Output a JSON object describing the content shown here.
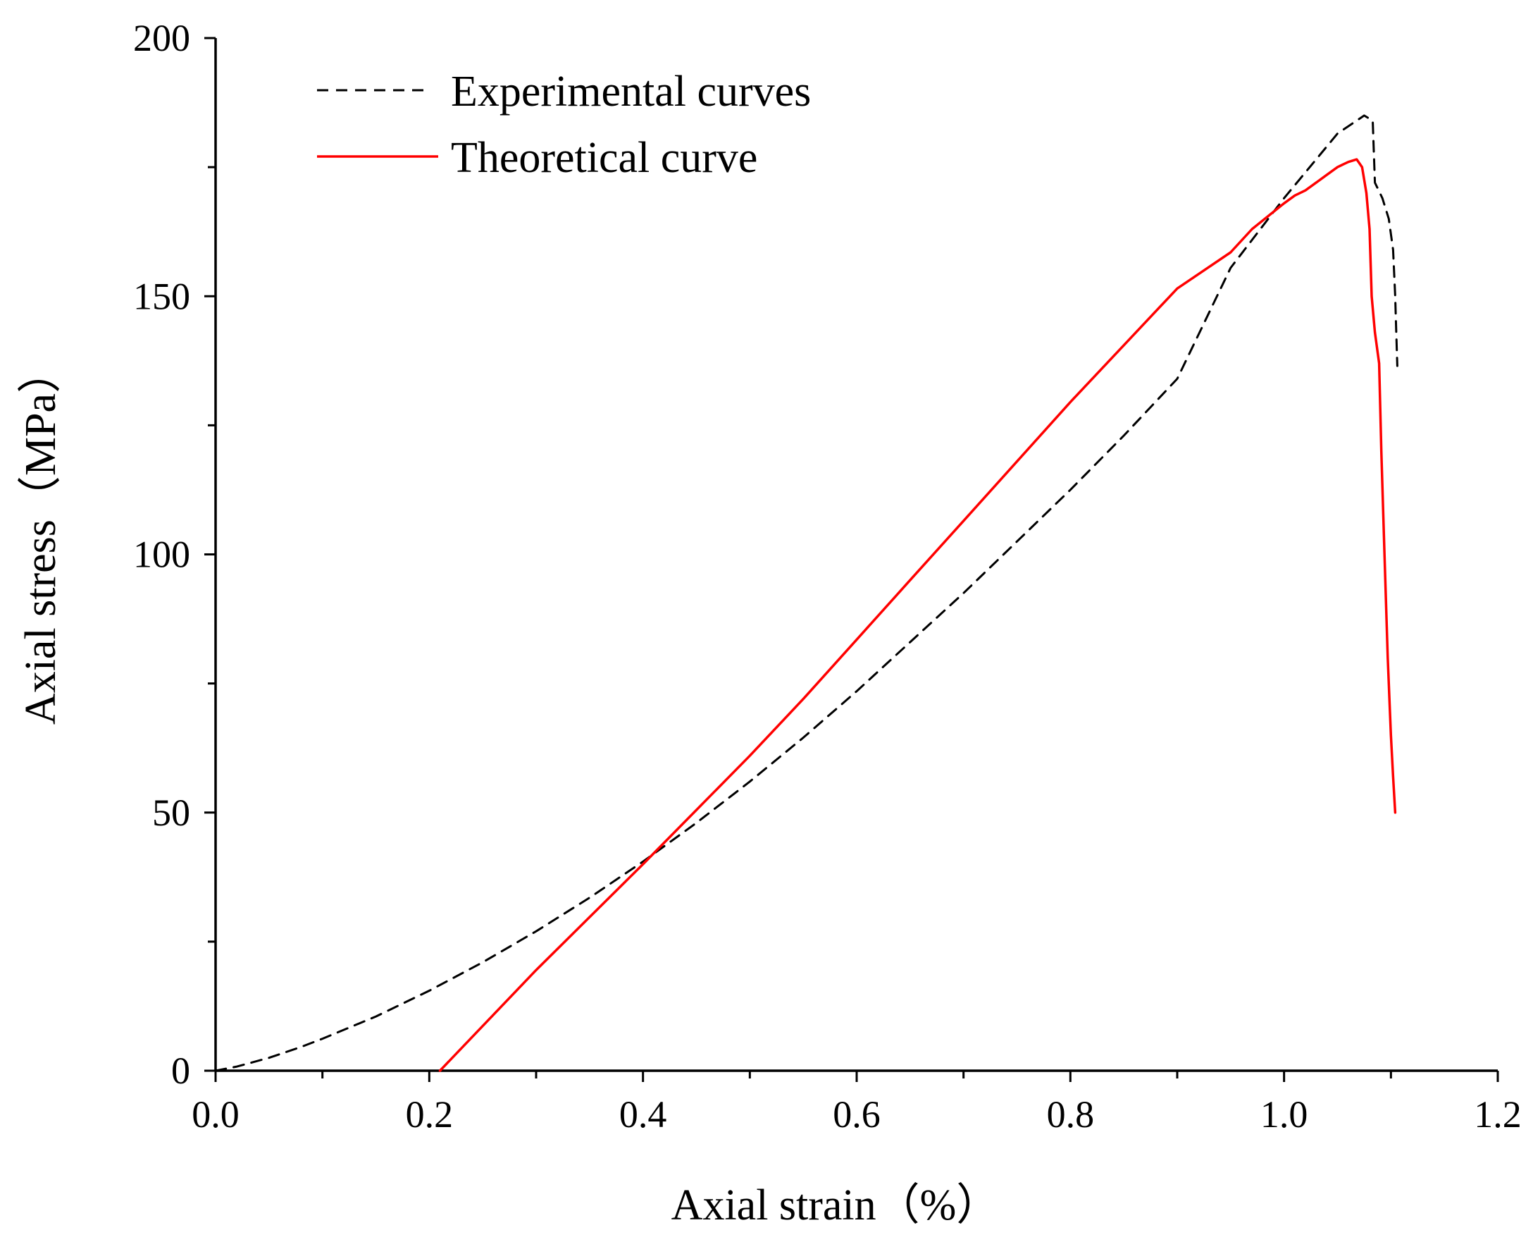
{
  "chart_data": {
    "type": "line",
    "title": "",
    "xlabel": "Axial strain（%）",
    "ylabel": "Axial stress（MPa）",
    "xlim": [
      0,
      1.2
    ],
    "ylim": [
      0,
      200
    ],
    "xticks": [
      0.0,
      0.2,
      0.4,
      0.6,
      0.8,
      1.0,
      1.2
    ],
    "xtick_labels": [
      "0.0",
      "0.2",
      "0.4",
      "0.6",
      "0.8",
      "1.0",
      "1.2"
    ],
    "yticks": [
      0,
      50,
      100,
      150,
      200
    ],
    "ytick_labels": [
      "0",
      "50",
      "100",
      "150",
      "200"
    ],
    "x_minor_step": 0.1,
    "y_minor_step": 25,
    "grid": false,
    "legend_position": "top-left",
    "series": [
      {
        "name": "Experimental curves",
        "color": "#000000",
        "style": "dashed",
        "points": [
          [
            0.0,
            0.0
          ],
          [
            0.02,
            0.8
          ],
          [
            0.05,
            2.5
          ],
          [
            0.08,
            4.6
          ],
          [
            0.1,
            6.2
          ],
          [
            0.15,
            10.5
          ],
          [
            0.2,
            15.5
          ],
          [
            0.25,
            21.0
          ],
          [
            0.3,
            27.0
          ],
          [
            0.35,
            33.5
          ],
          [
            0.4,
            40.5
          ],
          [
            0.45,
            48.0
          ],
          [
            0.5,
            56.0
          ],
          [
            0.55,
            64.5
          ],
          [
            0.6,
            73.5
          ],
          [
            0.65,
            83.0
          ],
          [
            0.7,
            92.5
          ],
          [
            0.75,
            102.5
          ],
          [
            0.8,
            112.5
          ],
          [
            0.85,
            123.0
          ],
          [
            0.9,
            134.0
          ],
          [
            0.95,
            155.5
          ],
          [
            1.0,
            169.0
          ],
          [
            1.05,
            181.5
          ],
          [
            1.075,
            185.0
          ],
          [
            1.083,
            184.0
          ],
          [
            1.085,
            172.0
          ],
          [
            1.092,
            169.0
          ],
          [
            1.098,
            165.0
          ],
          [
            1.102,
            159.0
          ],
          [
            1.104,
            150.0
          ],
          [
            1.105,
            143.0
          ],
          [
            1.106,
            136.5
          ]
        ]
      },
      {
        "name": "Theoretical curve",
        "color": "#ff0000",
        "style": "solid",
        "points": [
          [
            0.21,
            0.0
          ],
          [
            0.3,
            19.5
          ],
          [
            0.4,
            40.0
          ],
          [
            0.45,
            50.5
          ],
          [
            0.5,
            61.0
          ],
          [
            0.55,
            72.0
          ],
          [
            0.6,
            83.5
          ],
          [
            0.65,
            95.0
          ],
          [
            0.7,
            106.5
          ],
          [
            0.75,
            118.0
          ],
          [
            0.8,
            129.5
          ],
          [
            0.85,
            140.5
          ],
          [
            0.9,
            151.5
          ],
          [
            0.95,
            158.5
          ],
          [
            0.97,
            163.0
          ],
          [
            1.0,
            168.0
          ],
          [
            1.01,
            169.5
          ],
          [
            1.02,
            170.5
          ],
          [
            1.03,
            172.0
          ],
          [
            1.04,
            173.5
          ],
          [
            1.05,
            175.0
          ],
          [
            1.06,
            176.0
          ],
          [
            1.068,
            176.5
          ],
          [
            1.073,
            175.0
          ],
          [
            1.077,
            170.0
          ],
          [
            1.08,
            163.0
          ],
          [
            1.082,
            150.0
          ],
          [
            1.085,
            143.0
          ],
          [
            1.089,
            137.0
          ],
          [
            1.091,
            120.0
          ],
          [
            1.094,
            100.0
          ],
          [
            1.097,
            80.0
          ],
          [
            1.1,
            65.0
          ],
          [
            1.102,
            57.0
          ],
          [
            1.104,
            50.0
          ]
        ]
      }
    ]
  }
}
